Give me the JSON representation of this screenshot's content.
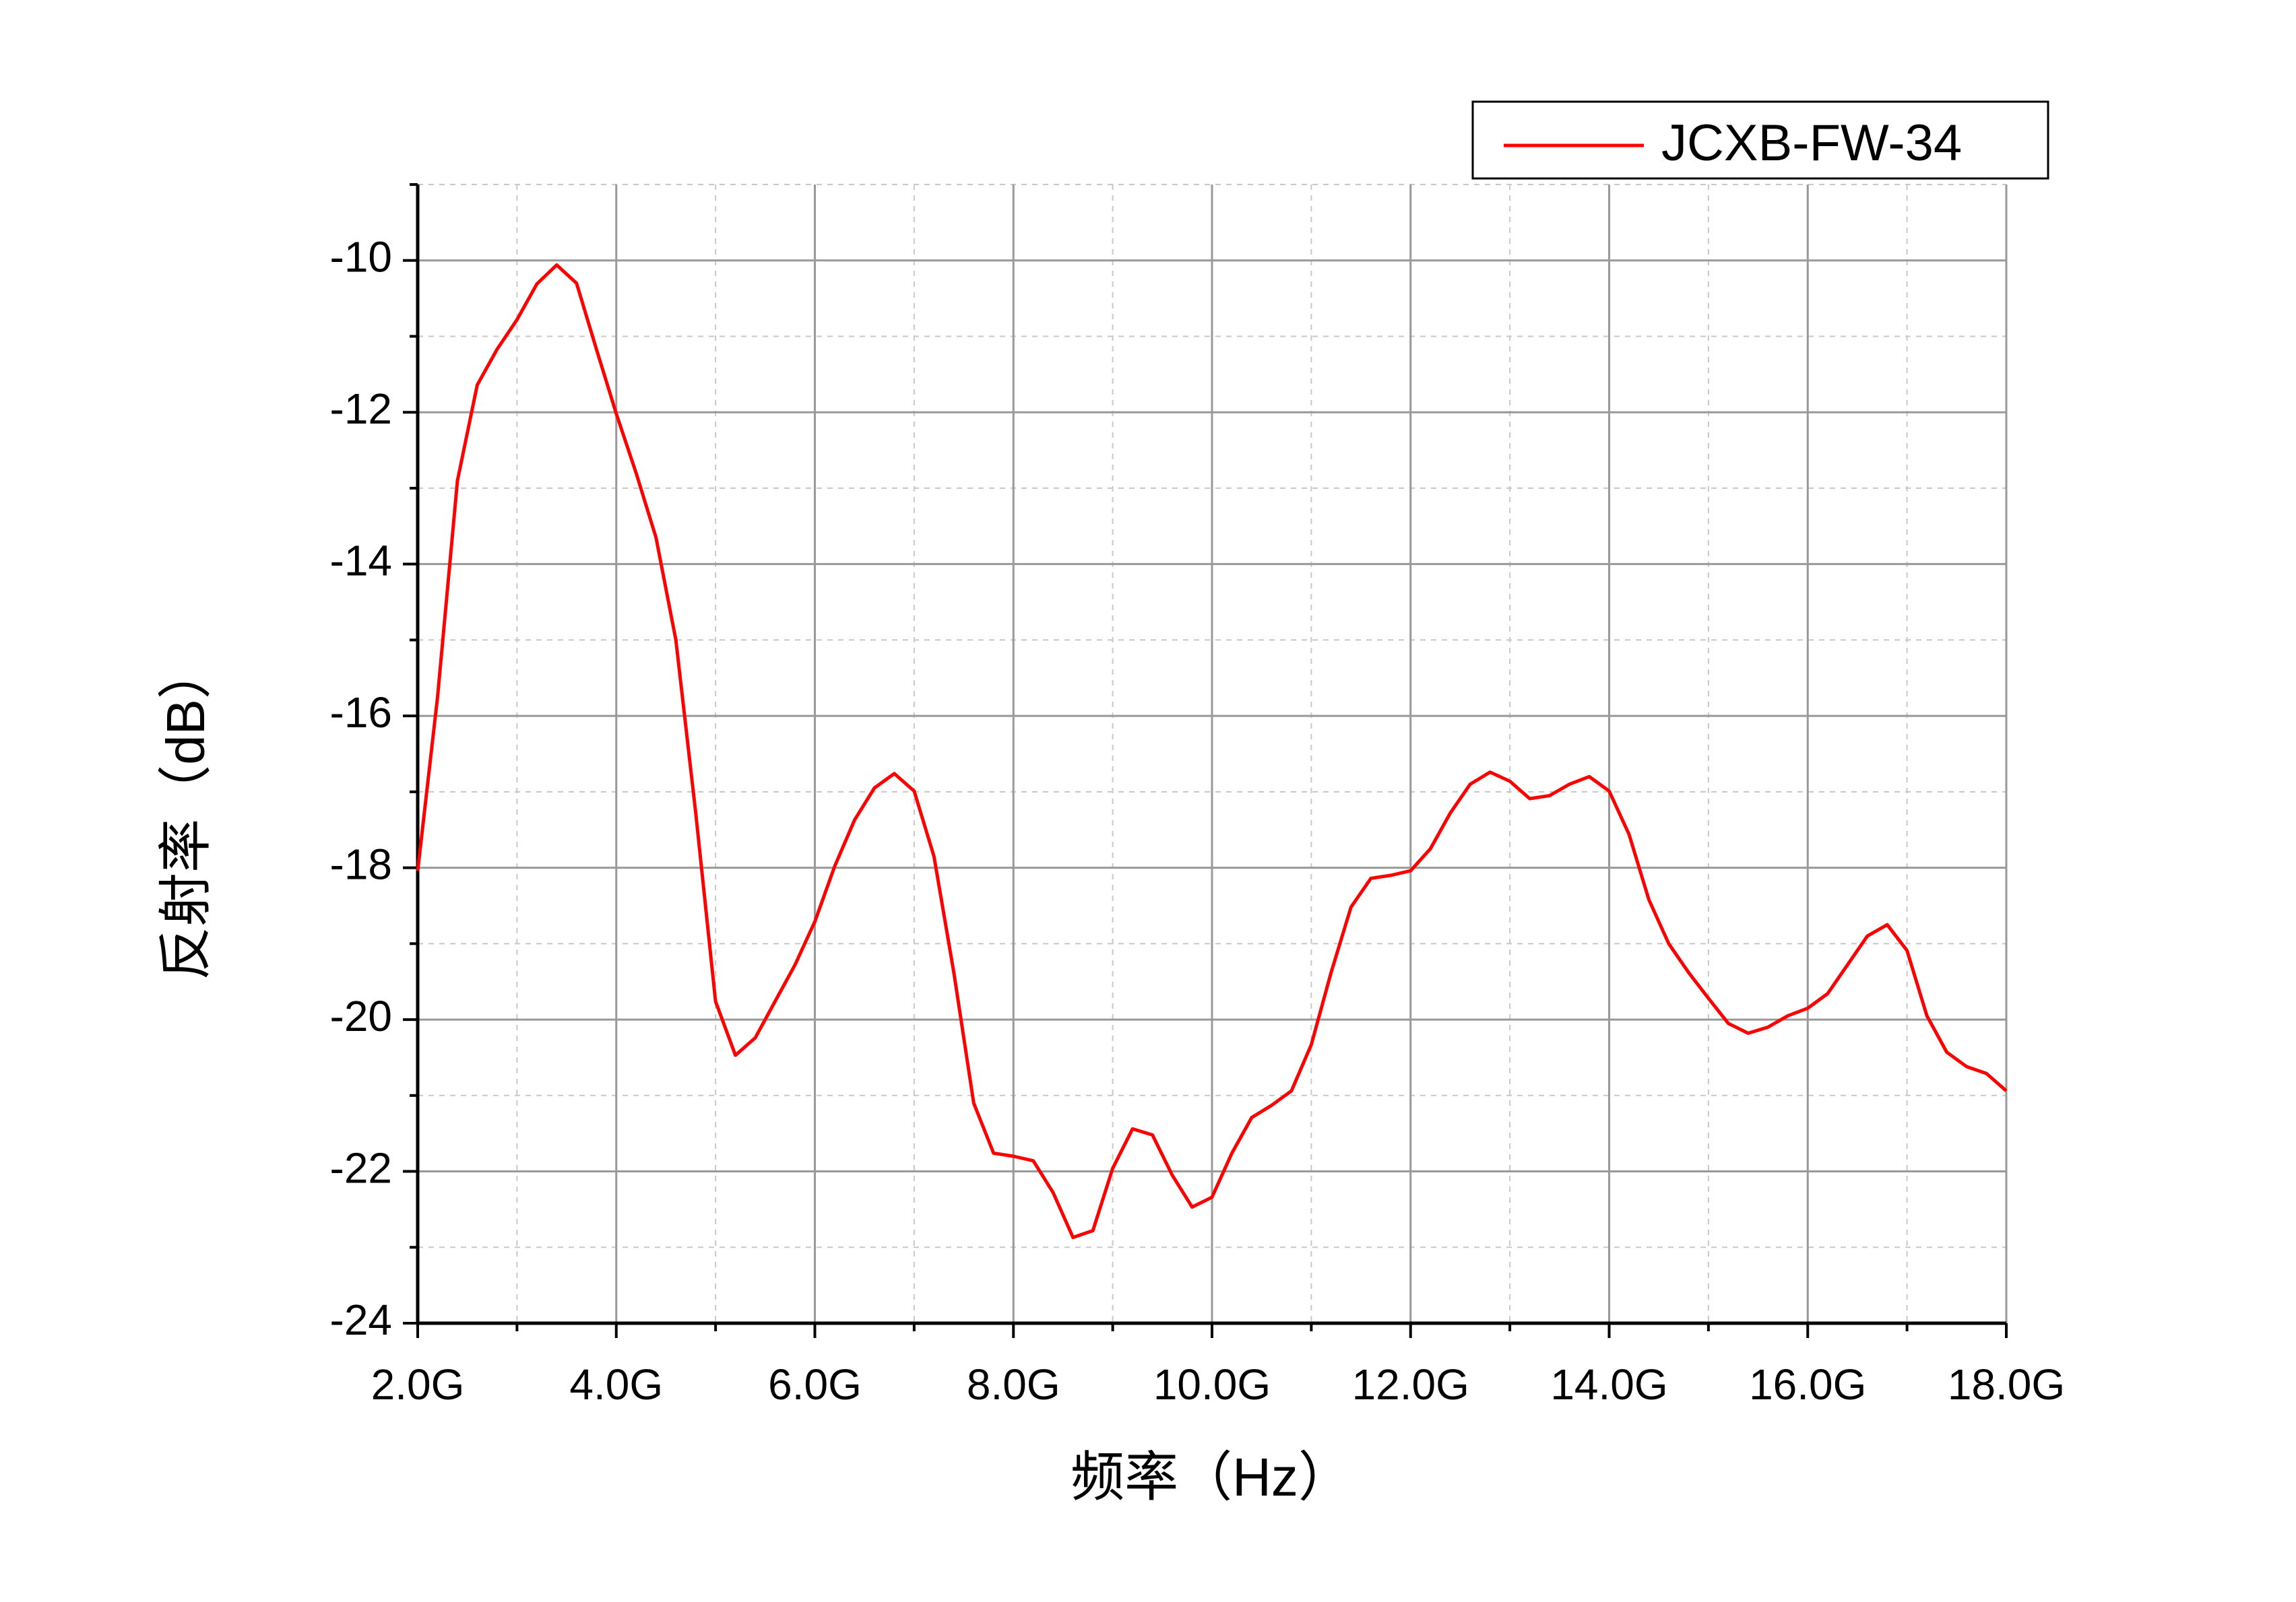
{
  "chart_data": {
    "type": "line",
    "xlabel": "频率（Hz）",
    "ylabel": "反射率（dB）",
    "x": [
      2.0,
      2.2,
      2.4,
      2.6,
      2.8,
      3.0,
      3.2,
      3.4,
      3.6,
      3.8,
      4.0,
      4.2,
      4.4,
      4.6,
      4.8,
      5.0,
      5.2,
      5.4,
      5.6,
      5.8,
      6.0,
      6.2,
      6.4,
      6.6,
      6.8,
      7.0,
      7.2,
      7.4,
      7.6,
      7.8,
      8.0,
      8.2,
      8.4,
      8.6,
      8.8,
      9.0,
      9.2,
      9.4,
      9.6,
      9.8,
      10.0,
      10.2,
      10.4,
      10.6,
      10.8,
      11.0,
      11.2,
      11.4,
      11.6,
      11.8,
      12.0,
      12.2,
      12.4,
      12.6,
      12.8,
      13.0,
      13.2,
      13.4,
      13.6,
      13.8,
      14.0,
      14.2,
      14.4,
      14.6,
      14.8,
      15.0,
      15.2,
      15.4,
      15.6,
      15.8,
      16.0,
      16.2,
      16.4,
      16.6,
      16.8,
      17.0,
      17.2,
      17.4,
      17.6,
      17.8,
      18.0
    ],
    "series": [
      {
        "name": "JCXB-FW-34",
        "color": "#ff0000",
        "values": [
          -18.04,
          -15.75,
          -12.9,
          -11.64,
          -11.17,
          -10.78,
          -10.31,
          -10.06,
          -10.3,
          -11.17,
          -12.02,
          -12.8,
          -13.65,
          -15.0,
          -17.28,
          -19.76,
          -20.47,
          -20.24,
          -19.76,
          -19.28,
          -18.71,
          -17.98,
          -17.37,
          -16.95,
          -16.76,
          -16.99,
          -17.85,
          -19.38,
          -21.1,
          -21.76,
          -21.8,
          -21.86,
          -22.28,
          -22.87,
          -22.78,
          -21.96,
          -21.44,
          -21.52,
          -22.05,
          -22.47,
          -22.34,
          -21.76,
          -21.29,
          -21.13,
          -20.94,
          -20.33,
          -19.38,
          -18.52,
          -18.14,
          -18.1,
          -18.04,
          -17.75,
          -17.28,
          -16.9,
          -16.74,
          -16.86,
          -17.09,
          -17.05,
          -16.9,
          -16.8,
          -16.99,
          -17.56,
          -18.42,
          -19.0,
          -19.38,
          -19.72,
          -20.05,
          -20.18,
          -20.1,
          -19.95,
          -19.85,
          -19.66,
          -19.28,
          -18.9,
          -18.75,
          -19.09,
          -19.95,
          -20.43,
          -20.62,
          -20.71,
          -20.94
        ]
      }
    ],
    "xlim": [
      2,
      18
    ],
    "xticks": [
      {
        "value": 2,
        "label": "2.0G"
      },
      {
        "value": 4,
        "label": "4.0G"
      },
      {
        "value": 6,
        "label": "6.0G"
      },
      {
        "value": 8,
        "label": "8.0G"
      },
      {
        "value": 10,
        "label": "10.0G"
      },
      {
        "value": 12,
        "label": "12.0G"
      },
      {
        "value": 14,
        "label": "14.0G"
      },
      {
        "value": 16,
        "label": "16.0G"
      },
      {
        "value": 18,
        "label": "18.0G"
      }
    ],
    "ylim": [
      -24,
      -9
    ],
    "yticks": [
      -24,
      -22,
      -20,
      -18,
      -16,
      -14,
      -12,
      -10
    ],
    "grid": true,
    "minor_grid": true,
    "legend": "top-right"
  }
}
